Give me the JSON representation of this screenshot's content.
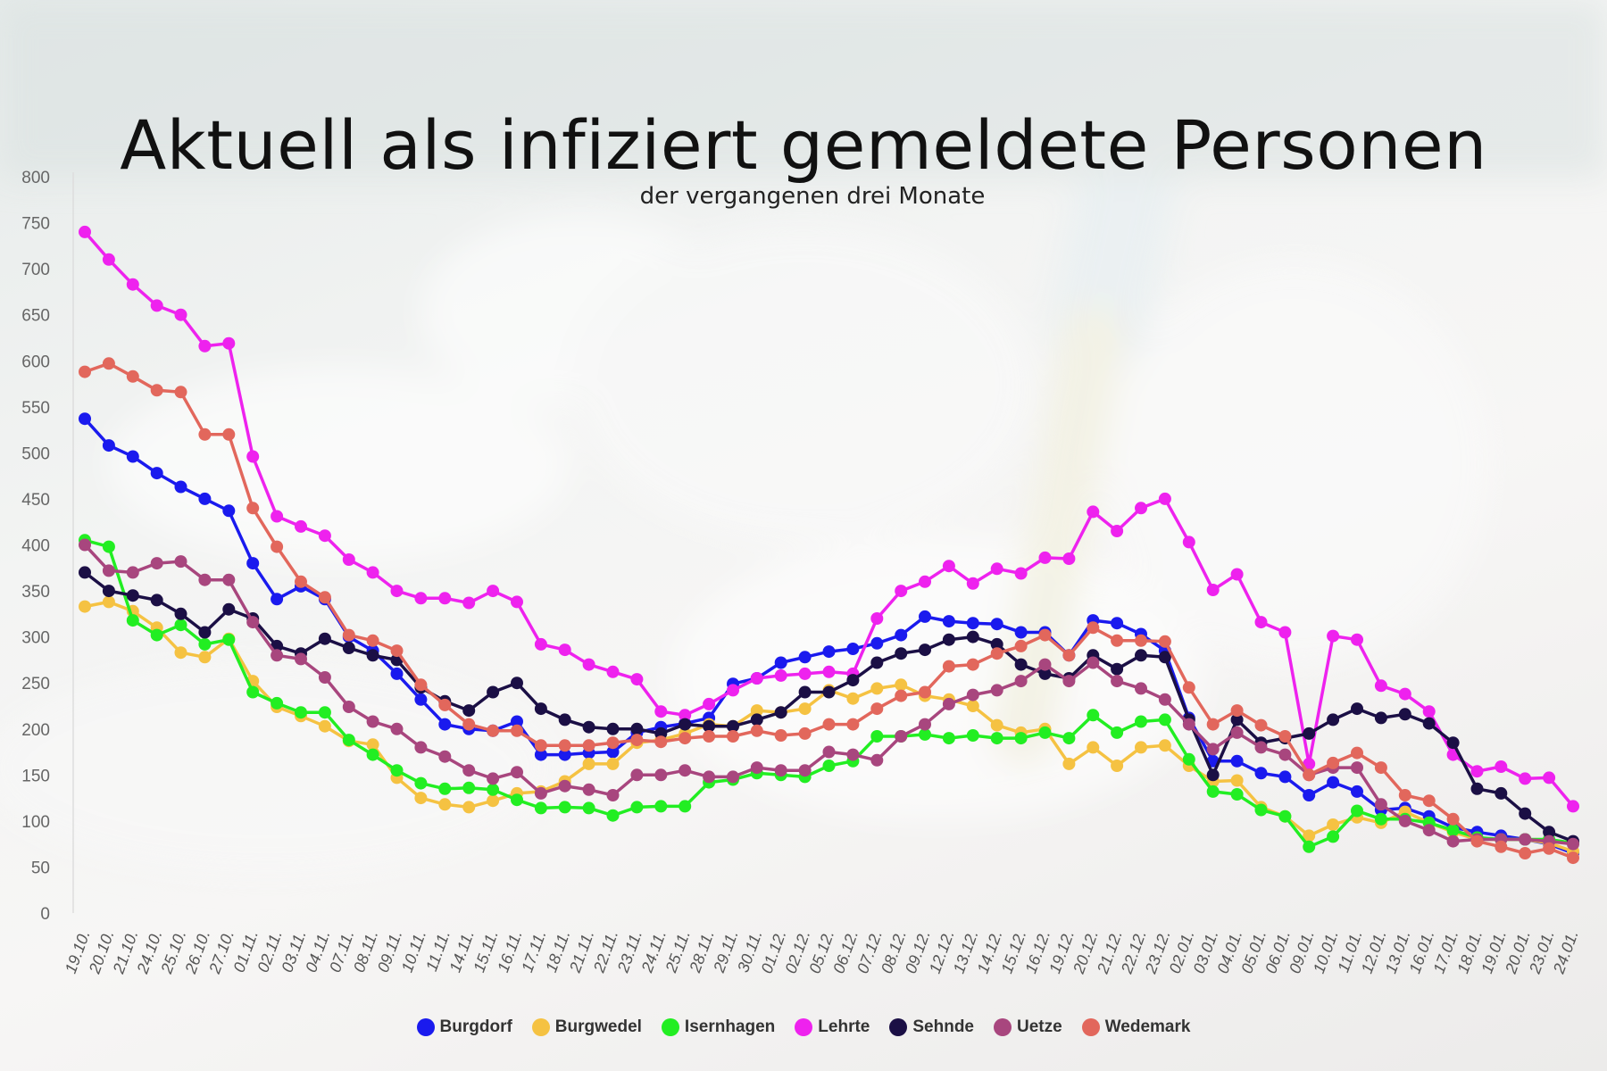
{
  "chart_data": {
    "type": "line",
    "title": "Aktuell als infiziert gemeldete Personen",
    "subtitle": "der vergangenen drei Monate",
    "ylim": [
      0,
      800
    ],
    "yticks": [
      0,
      50,
      100,
      150,
      200,
      250,
      300,
      350,
      400,
      450,
      500,
      550,
      600,
      650,
      700,
      750,
      800
    ],
    "grid": false,
    "legend_position": "bottom",
    "x": [
      "19.10.",
      "20.10.",
      "21.10.",
      "24.10.",
      "25.10.",
      "26.10.",
      "27.10.",
      "01.11.",
      "02.11.",
      "03.11.",
      "04.11.",
      "07.11.",
      "08.11.",
      "09.11.",
      "10.11.",
      "11.11.",
      "14.11.",
      "15.11.",
      "16.11.",
      "17.11.",
      "18.11.",
      "21.11.",
      "22.11.",
      "23.11.",
      "24.11.",
      "25.11.",
      "28.11.",
      "29.11.",
      "30.11.",
      "01.12.",
      "02.12.",
      "05.12.",
      "06.12.",
      "07.12.",
      "08.12.",
      "09.12.",
      "12.12.",
      "13.12.",
      "14.12.",
      "15.12.",
      "16.12.",
      "19.12.",
      "20.12.",
      "21.12.",
      "22.12.",
      "23.12.",
      "02.01.",
      "03.01.",
      "04.01.",
      "05.01.",
      "06.01.",
      "09.01.",
      "10.01.",
      "11.01.",
      "12.01.",
      "13.01.",
      "16.01.",
      "17.01.",
      "18.01.",
      "19.01.",
      "20.01.",
      "23.01.",
      "24.01."
    ],
    "series": [
      {
        "name": "Burgdorf",
        "color": "#1a1aee",
        "values": [
          537,
          508,
          496,
          478,
          463,
          450,
          437,
          380,
          341,
          355,
          341,
          300,
          285,
          260,
          232,
          205,
          200,
          198,
          208,
          172,
          172,
          174,
          175,
          196,
          202,
          206,
          212,
          249,
          255,
          272,
          278,
          284,
          287,
          293,
          302,
          322,
          317,
          315,
          314,
          305,
          305,
          280,
          318,
          315,
          303,
          285,
          212,
          165,
          165,
          152,
          148,
          128,
          142,
          132,
          112,
          114,
          105,
          93,
          88,
          84,
          80,
          75,
          65
        ]
      },
      {
        "name": "Burgwedel",
        "color": "#f5c242",
        "values": [
          333,
          338,
          328,
          310,
          283,
          278,
          298,
          252,
          224,
          214,
          203,
          187,
          183,
          147,
          125,
          118,
          115,
          122,
          130,
          132,
          143,
          162,
          162,
          185,
          188,
          195,
          205,
          203,
          220,
          218,
          222,
          242,
          233,
          244,
          248,
          236,
          232,
          225,
          204,
          196,
          200,
          162,
          180,
          160,
          180,
          182,
          160,
          143,
          144,
          115,
          105,
          84,
          96,
          104,
          98,
          110,
          98,
          88,
          80,
          80,
          80,
          76,
          67
        ]
      },
      {
        "name": "Isernhagen",
        "color": "#22ee22",
        "values": [
          405,
          398,
          318,
          302,
          313,
          292,
          297,
          240,
          228,
          218,
          218,
          188,
          172,
          155,
          141,
          135,
          136,
          134,
          123,
          114,
          115,
          114,
          106,
          115,
          116,
          116,
          142,
          145,
          152,
          150,
          148,
          160,
          165,
          192,
          192,
          194,
          190,
          193,
          190,
          190,
          196,
          190,
          215,
          196,
          208,
          210,
          167,
          132,
          129,
          112,
          105,
          72,
          83,
          111,
          102,
          102,
          98,
          90,
          82,
          80,
          80,
          80,
          76
        ]
      },
      {
        "name": "Lehrte",
        "color": "#ee22ee",
        "values": [
          740,
          710,
          683,
          660,
          650,
          616,
          619,
          496,
          431,
          420,
          410,
          384,
          370,
          350,
          342,
          342,
          337,
          350,
          338,
          292,
          286,
          270,
          262,
          254,
          219,
          215,
          227,
          242,
          255,
          258,
          260,
          262,
          260,
          320,
          350,
          360,
          377,
          358,
          374,
          369,
          386,
          385,
          436,
          415,
          440,
          450,
          403,
          351,
          368,
          316,
          305,
          162,
          301,
          297,
          247,
          238,
          219,
          172,
          154,
          159,
          146,
          147,
          116
        ]
      },
      {
        "name": "Sehnde",
        "color": "#1b0f45",
        "values": [
          370,
          350,
          345,
          340,
          325,
          305,
          330,
          320,
          290,
          282,
          298,
          288,
          280,
          275,
          245,
          230,
          220,
          240,
          250,
          222,
          210,
          202,
          200,
          200,
          195,
          205,
          203,
          203,
          210,
          218,
          240,
          240,
          253,
          272,
          282,
          286,
          297,
          300,
          292,
          270,
          260,
          255,
          280,
          265,
          280,
          278,
          210,
          150,
          210,
          185,
          190,
          195,
          210,
          222,
          212,
          216,
          206,
          185,
          135,
          130,
          108,
          88,
          78
        ]
      },
      {
        "name": "Uetze",
        "color": "#a8467e",
        "values": [
          400,
          372,
          370,
          380,
          382,
          362,
          362,
          316,
          280,
          276,
          256,
          224,
          208,
          200,
          180,
          170,
          155,
          146,
          153,
          130,
          138,
          134,
          128,
          150,
          150,
          155,
          148,
          148,
          158,
          155,
          155,
          175,
          172,
          166,
          192,
          205,
          227,
          237,
          242,
          252,
          270,
          252,
          272,
          252,
          244,
          232,
          205,
          178,
          196,
          180,
          172,
          150,
          158,
          158,
          118,
          100,
          90,
          78,
          80,
          80,
          80,
          78,
          75
        ]
      },
      {
        "name": "Wedemark",
        "color": "#e2675c",
        "values": [
          588,
          597,
          583,
          568,
          566,
          520,
          520,
          440,
          398,
          360,
          343,
          302,
          296,
          285,
          248,
          226,
          205,
          198,
          198,
          182,
          182,
          182,
          185,
          188,
          186,
          190,
          192,
          192,
          198,
          193,
          195,
          205,
          205,
          222,
          236,
          240,
          268,
          270,
          282,
          290,
          302,
          280,
          310,
          296,
          296,
          295,
          245,
          205,
          220,
          204,
          192,
          150,
          163,
          174,
          158,
          128,
          122,
          102,
          78,
          72,
          65,
          70,
          60
        ]
      }
    ]
  }
}
